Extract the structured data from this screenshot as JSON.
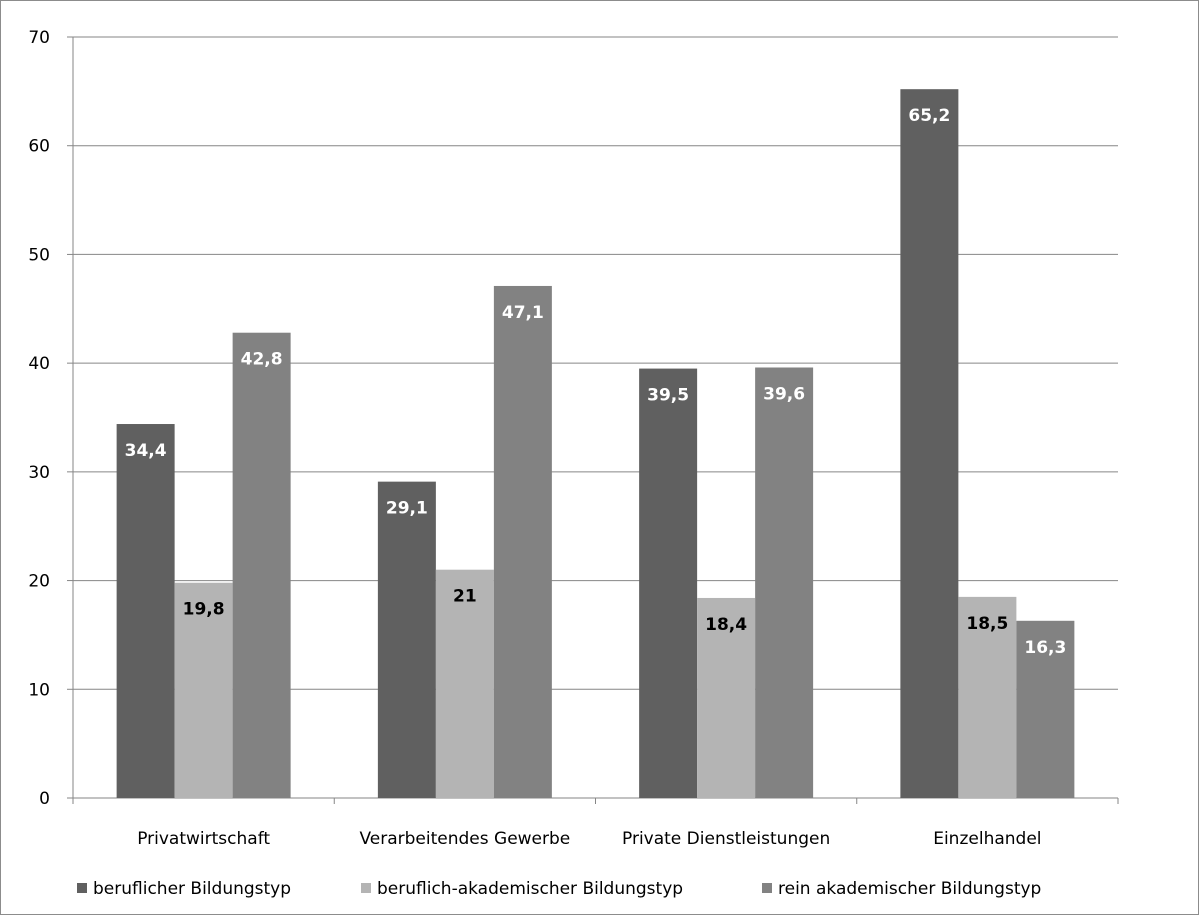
{
  "chart_data": {
    "type": "bar",
    "categories": [
      "Privatwirtschaft",
      "Verarbeitendes Gewerbe",
      "Private Dienstleistungen",
      "Einzelhandel"
    ],
    "series": [
      {
        "name": "beruflicher Bildungstyp",
        "color": "#606060",
        "label_color": "#ffffff",
        "values": [
          34.4,
          29.1,
          39.5,
          65.2
        ],
        "labels": [
          "34,4",
          "29,1",
          "39,5",
          "65,2"
        ]
      },
      {
        "name": "beruflich-akademischer Bildungstyp",
        "color": "#b4b4b4",
        "label_color": "#000000",
        "values": [
          19.8,
          21,
          18.4,
          18.5
        ],
        "labels": [
          "19,8",
          "21",
          "18,4",
          "18,5"
        ]
      },
      {
        "name": "rein akademischer Bildungstyp",
        "color": "#828282",
        "label_color": "#ffffff",
        "values": [
          42.8,
          47.1,
          39.6,
          16.3
        ],
        "labels": [
          "42,8",
          "47,1",
          "39,6",
          "16,3"
        ]
      }
    ],
    "yticks": [
      0,
      10,
      20,
      30,
      40,
      50,
      60,
      70
    ],
    "ylim": [
      0,
      70
    ],
    "grid": true,
    "legend_position": "bottom",
    "title": "",
    "xlabel": "",
    "ylabel": ""
  }
}
